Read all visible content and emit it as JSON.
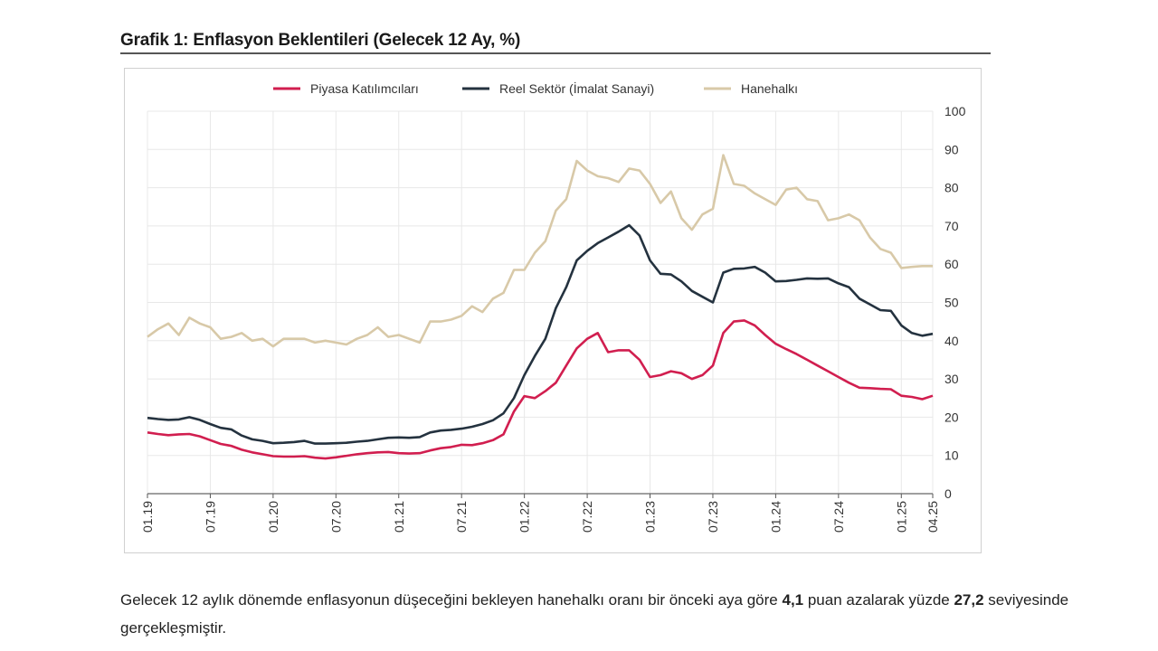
{
  "title": "Grafik 1: Enflasyon Beklentileri (Gelecek 12 Ay, %)",
  "colors": {
    "piyasa": "#d11e4f",
    "reel": "#24323f",
    "hanehalki": "#d8c9a8",
    "grid": "#e8e8e8"
  },
  "chart_data": {
    "type": "line",
    "title": "Grafik 1: Enflasyon Beklentileri (Gelecek 12 Ay, %)",
    "xlabel": "",
    "ylabel": "",
    "ylim": [
      0,
      100
    ],
    "yticks": [
      "0",
      "10",
      "20",
      "30",
      "40",
      "50",
      "60",
      "70",
      "80",
      "90",
      "100"
    ],
    "x_start": "01.19",
    "x_end": "04.25",
    "xtick_labels": [
      "01.19",
      "07.19",
      "01.20",
      "07.20",
      "01.21",
      "07.21",
      "01.22",
      "07.22",
      "01.23",
      "07.23",
      "01.24",
      "07.24",
      "01.25",
      "04.25"
    ],
    "grid": true,
    "legend_position": "top",
    "series": [
      {
        "name": "Piyasa Katılımcıları",
        "color": "#d11e4f",
        "values": [
          16,
          15.6,
          15.3,
          15.5,
          15.6,
          15,
          14,
          13,
          12.5,
          11.5,
          10.8,
          10.3,
          9.8,
          9.7,
          9.7,
          9.8,
          9.4,
          9.2,
          9.5,
          9.9,
          10.3,
          10.6,
          10.8,
          10.9,
          10.6,
          10.5,
          10.6,
          11.3,
          11.9,
          12.2,
          12.8,
          12.7,
          13.2,
          14,
          15.5,
          21.5,
          25.5,
          25,
          26.8,
          29,
          33.5,
          38,
          40.5,
          42,
          37,
          37.5,
          37.5,
          35,
          30.5,
          31,
          32,
          31.5,
          30,
          31,
          33.5,
          42,
          45,
          45.3,
          44,
          41.5,
          39.2,
          37.8,
          36.5,
          35,
          33.5,
          32,
          30.5,
          29,
          27.7,
          27.6,
          27.4,
          27.3,
          25.6,
          25.3,
          24.7,
          25.6
        ]
      },
      {
        "name": "Reel Sektör (İmalat Sanayi)",
        "color": "#24323f",
        "values": [
          19.8,
          19.5,
          19.3,
          19.4,
          20,
          19.3,
          18.2,
          17.2,
          16.8,
          15.2,
          14.2,
          13.8,
          13.2,
          13.3,
          13.5,
          13.8,
          13.1,
          13.1,
          13.2,
          13.3,
          13.6,
          13.8,
          14.2,
          14.6,
          14.7,
          14.6,
          14.8,
          16,
          16.5,
          16.7,
          17,
          17.5,
          18.2,
          19.2,
          21,
          25,
          31,
          36,
          40.5,
          48.5,
          54,
          61,
          63.5,
          65.5,
          67,
          68.5,
          70.2,
          67.5,
          61,
          57.5,
          57.3,
          55.5,
          53,
          51.5,
          50,
          57.8,
          58.8,
          58.9,
          59.3,
          57.8,
          55.5,
          55.6,
          55.9,
          56.3,
          56.2,
          56.3,
          55,
          54,
          51,
          49.5,
          48,
          47.8,
          44,
          42,
          41.3,
          41.8
        ]
      },
      {
        "name": "Hanehalkı",
        "color": "#d8c9a8",
        "values": [
          41,
          43,
          44.5,
          41.5,
          46,
          44.5,
          43.5,
          40.5,
          41,
          42,
          40,
          40.5,
          38.5,
          40.5,
          40.5,
          40.5,
          39.5,
          40,
          39.5,
          39,
          40.5,
          41.5,
          43.5,
          41,
          41.5,
          40.5,
          39.5,
          45,
          45,
          45.5,
          46.5,
          49,
          47.5,
          51,
          52.5,
          58.5,
          58.5,
          63,
          66,
          74,
          77,
          87,
          84.5,
          83,
          82.5,
          81.5,
          85,
          84.5,
          81,
          76,
          79,
          72,
          69,
          73,
          74.5,
          88.5,
          81,
          80.5,
          78.5,
          77,
          75.5,
          79.5,
          80,
          77,
          76.5,
          71.5,
          72,
          73,
          71.5,
          67,
          64,
          63,
          59,
          59.3,
          59.5,
          59.5
        ]
      }
    ]
  },
  "paragraph": {
    "part1": "Gelecek 12 aylık dönemde enflasyonun düşeceğini bekleyen hanehalkı oranı bir önceki aya göre ",
    "bold1": "4,1",
    "part2": " puan azalarak yüzde ",
    "bold2": "27,2",
    "part3": " seviyesinde gerçekleşmiştir."
  }
}
